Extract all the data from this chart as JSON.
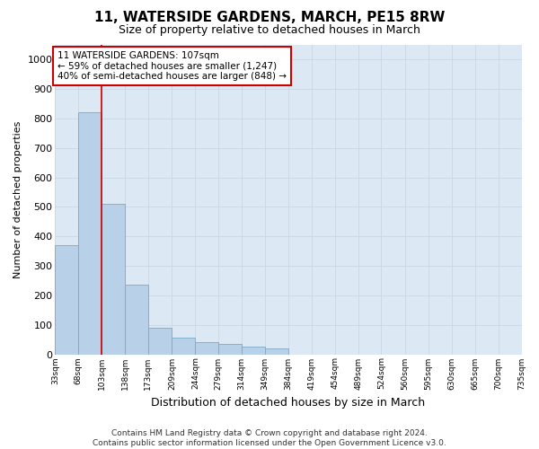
{
  "title": "11, WATERSIDE GARDENS, MARCH, PE15 8RW",
  "subtitle": "Size of property relative to detached houses in March",
  "xlabel": "Distribution of detached houses by size in March",
  "ylabel": "Number of detached properties",
  "bar_color": "#b8d0e8",
  "bar_edge_color": "#7aaac8",
  "grid_color": "#c8d8e8",
  "background_color": "#dce8f4",
  "annotation_box_color": "#cc0000",
  "annotation_text": "11 WATERSIDE GARDENS: 107sqm\n← 59% of detached houses are smaller (1,247)\n40% of semi-detached houses are larger (848) →",
  "property_line_x": 103,
  "bins": [
    33,
    68,
    103,
    138,
    173,
    209,
    244,
    279,
    314,
    349,
    384,
    419,
    454,
    489,
    524,
    560,
    595,
    630,
    665,
    700,
    735
  ],
  "bar_heights": [
    370,
    820,
    510,
    235,
    90,
    55,
    40,
    35,
    25,
    20,
    0,
    0,
    0,
    0,
    0,
    0,
    0,
    0,
    0,
    0
  ],
  "ylim": [
    0,
    1050
  ],
  "yticks": [
    0,
    100,
    200,
    300,
    400,
    500,
    600,
    700,
    800,
    900,
    1000
  ],
  "footer_line1": "Contains HM Land Registry data © Crown copyright and database right 2024.",
  "footer_line2": "Contains public sector information licensed under the Open Government Licence v3.0.",
  "figsize": [
    6.0,
    5.0
  ],
  "dpi": 100
}
